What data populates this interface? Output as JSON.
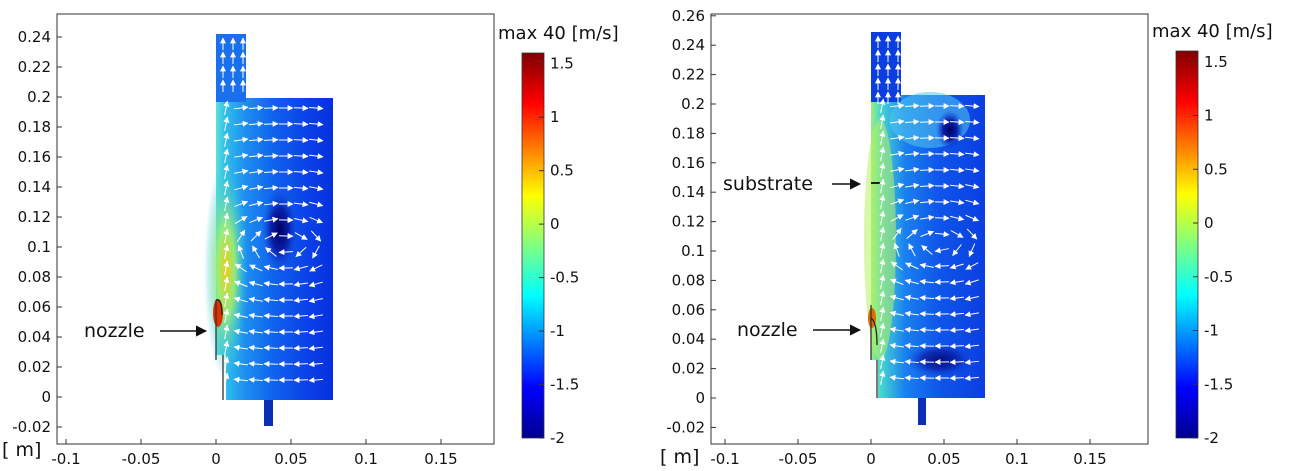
{
  "chart_data": [
    {
      "type": "heatmap",
      "description_scale": "log velocity magnitude colour map with flow arrows",
      "x_ticks": [
        "-0.1",
        "-0.05",
        "0",
        "0.05",
        "0.1",
        "0.15"
      ],
      "y_ticks": [
        "-0.02",
        "0",
        "0.02",
        "0.04",
        "0.06",
        "0.08",
        "0.1",
        "0.12",
        "0.14",
        "0.16",
        "0.18",
        "0.2",
        "0.22",
        "0.24"
      ],
      "xlim": [
        -0.11,
        0.185
      ],
      "ylim": [
        -0.03,
        0.255
      ],
      "unit_label": "[ m]",
      "colorbar": {
        "title": "max 40 [m/s]",
        "ticks": [
          "1.5",
          "1",
          "0.5",
          "0",
          "-0.5",
          "-1",
          "-1.5",
          "-2"
        ],
        "range": [
          -2,
          1.6
        ]
      },
      "annotations": [
        {
          "text": "nozzle",
          "x": 0.0,
          "y": 0.045
        }
      ]
    },
    {
      "type": "heatmap",
      "x_ticks": [
        "-0.1",
        "-0.05",
        "0",
        "0.05",
        "0.1",
        "0.15"
      ],
      "y_ticks": [
        "-0.02",
        "0",
        "0.02",
        "0.04",
        "0.06",
        "0.08",
        "0.1",
        "0.12",
        "0.14",
        "0.16",
        "0.18",
        "0.2",
        "0.22",
        "0.24",
        "0.26"
      ],
      "xlim": [
        -0.11,
        0.185
      ],
      "ylim": [
        -0.03,
        0.263
      ],
      "unit_label": "[ m]",
      "colorbar": {
        "title": "max 40 [m/s]",
        "ticks": [
          "1.5",
          "1",
          "0.5",
          "0",
          "-0.5",
          "-1",
          "-1.5",
          "-2"
        ],
        "range": [
          -2,
          1.6
        ]
      },
      "annotations": [
        {
          "text": "substrate",
          "x": 0.0,
          "y": 0.146
        },
        {
          "text": "nozzle",
          "x": 0.0,
          "y": 0.045
        }
      ]
    }
  ]
}
